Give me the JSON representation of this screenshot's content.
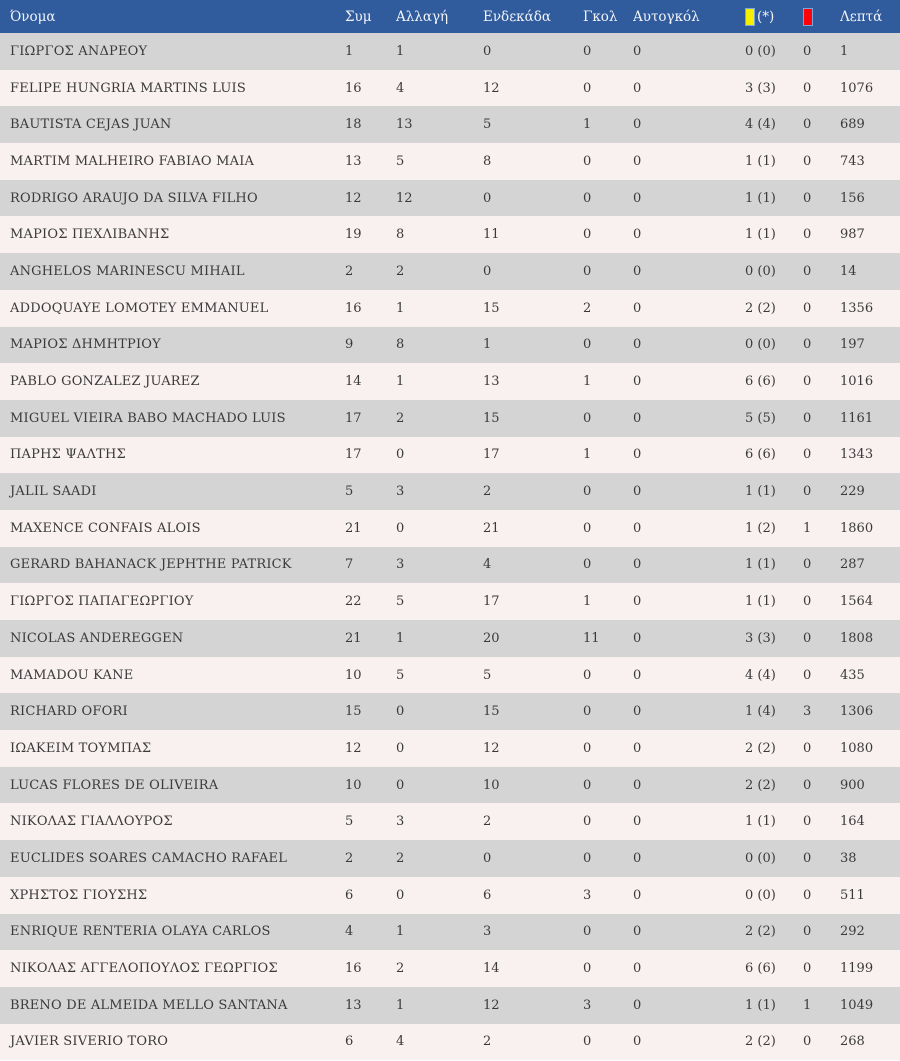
{
  "table": {
    "columns": [
      {
        "label": "Όνομα"
      },
      {
        "label": "Συμ"
      },
      {
        "label": "Αλλαγή"
      },
      {
        "label": "Ενδεκάδα"
      },
      {
        "label": "Γκολ"
      },
      {
        "label": "Αυτογκόλ"
      },
      {
        "label": "(*)",
        "icon": "yellow-card-icon"
      },
      {
        "label": "",
        "icon": "red-card-icon"
      },
      {
        "label": "Λεπτά"
      }
    ],
    "rows": [
      {
        "name": "ΓΙΩΡΓΟΣ ΑΝΔΡΕΟΥ",
        "appearances": "1",
        "substitutions": "1",
        "starting_eleven": "0",
        "goals": "0",
        "own_goals": "0",
        "yellow_cards": "0 (0)",
        "red_cards": "0",
        "minutes": "1"
      },
      {
        "name": "FELIPE HUNGRIA MARTINS LUIS",
        "appearances": "16",
        "substitutions": "4",
        "starting_eleven": "12",
        "goals": "0",
        "own_goals": "0",
        "yellow_cards": "3 (3)",
        "red_cards": "0",
        "minutes": "1076"
      },
      {
        "name": "BAUTISTA CEJAS JUAN",
        "appearances": "18",
        "substitutions": "13",
        "starting_eleven": "5",
        "goals": "1",
        "own_goals": "0",
        "yellow_cards": "4 (4)",
        "red_cards": "0",
        "minutes": "689"
      },
      {
        "name": "MARTIM MALHEIRO FABIAO MAIA",
        "appearances": "13",
        "substitutions": "5",
        "starting_eleven": "8",
        "goals": "0",
        "own_goals": "0",
        "yellow_cards": "1 (1)",
        "red_cards": "0",
        "minutes": "743"
      },
      {
        "name": "RODRIGO ARAUJO DA SILVA FILHO",
        "appearances": "12",
        "substitutions": "12",
        "starting_eleven": "0",
        "goals": "0",
        "own_goals": "0",
        "yellow_cards": "1 (1)",
        "red_cards": "0",
        "minutes": "156"
      },
      {
        "name": "ΜΑΡΙΟΣ ΠΕΧΛΙΒΑΝΗΣ",
        "appearances": "19",
        "substitutions": "8",
        "starting_eleven": "11",
        "goals": "0",
        "own_goals": "0",
        "yellow_cards": "1 (1)",
        "red_cards": "0",
        "minutes": "987"
      },
      {
        "name": "ANGHELOS MARINESCU MIHAIL",
        "appearances": "2",
        "substitutions": "2",
        "starting_eleven": "0",
        "goals": "0",
        "own_goals": "0",
        "yellow_cards": "0 (0)",
        "red_cards": "0",
        "minutes": "14"
      },
      {
        "name": "ADDOQUAYE LOMOTEY EMMANUEL",
        "appearances": "16",
        "substitutions": "1",
        "starting_eleven": "15",
        "goals": "2",
        "own_goals": "0",
        "yellow_cards": "2 (2)",
        "red_cards": "0",
        "minutes": "1356"
      },
      {
        "name": "ΜΑΡΙΟΣ ΔΗΜΗΤΡΙΟΥ",
        "appearances": "9",
        "substitutions": "8",
        "starting_eleven": "1",
        "goals": "0",
        "own_goals": "0",
        "yellow_cards": "0 (0)",
        "red_cards": "0",
        "minutes": "197"
      },
      {
        "name": "PABLO GONZALEZ JUAREZ",
        "appearances": "14",
        "substitutions": "1",
        "starting_eleven": "13",
        "goals": "1",
        "own_goals": "0",
        "yellow_cards": "6 (6)",
        "red_cards": "0",
        "minutes": "1016"
      },
      {
        "name": "MIGUEL VIEIRA BABO MACHADO LUIS",
        "appearances": "17",
        "substitutions": "2",
        "starting_eleven": "15",
        "goals": "0",
        "own_goals": "0",
        "yellow_cards": "5 (5)",
        "red_cards": "0",
        "minutes": "1161"
      },
      {
        "name": "ΠΑΡΗΣ ΨΑΛΤΗΣ",
        "appearances": "17",
        "substitutions": "0",
        "starting_eleven": "17",
        "goals": "1",
        "own_goals": "0",
        "yellow_cards": "6 (6)",
        "red_cards": "0",
        "minutes": "1343"
      },
      {
        "name": "JALIL SAADI",
        "appearances": "5",
        "substitutions": "3",
        "starting_eleven": "2",
        "goals": "0",
        "own_goals": "0",
        "yellow_cards": "1 (1)",
        "red_cards": "0",
        "minutes": "229"
      },
      {
        "name": "MAXENCE CONFAIS ALOIS",
        "appearances": "21",
        "substitutions": "0",
        "starting_eleven": "21",
        "goals": "0",
        "own_goals": "0",
        "yellow_cards": "1 (2)",
        "red_cards": "1",
        "minutes": "1860"
      },
      {
        "name": "GERARD BAHANACK JEPHTHE PATRICK",
        "appearances": "7",
        "substitutions": "3",
        "starting_eleven": "4",
        "goals": "0",
        "own_goals": "0",
        "yellow_cards": "1 (1)",
        "red_cards": "0",
        "minutes": "287"
      },
      {
        "name": "ΓΙΩΡΓΟΣ ΠΑΠΑΓΕΩΡΓΙΟΥ",
        "appearances": "22",
        "substitutions": "5",
        "starting_eleven": "17",
        "goals": "1",
        "own_goals": "0",
        "yellow_cards": "1 (1)",
        "red_cards": "0",
        "minutes": "1564"
      },
      {
        "name": "NICOLAS ANDEREGGEN",
        "appearances": "21",
        "substitutions": "1",
        "starting_eleven": "20",
        "goals": "11",
        "own_goals": "0",
        "yellow_cards": "3 (3)",
        "red_cards": "0",
        "minutes": "1808"
      },
      {
        "name": "MAMADOU KANE",
        "appearances": "10",
        "substitutions": "5",
        "starting_eleven": "5",
        "goals": "0",
        "own_goals": "0",
        "yellow_cards": "4 (4)",
        "red_cards": "0",
        "minutes": "435"
      },
      {
        "name": "RICHARD OFORI",
        "appearances": "15",
        "substitutions": "0",
        "starting_eleven": "15",
        "goals": "0",
        "own_goals": "0",
        "yellow_cards": "1 (4)",
        "red_cards": "3",
        "minutes": "1306"
      },
      {
        "name": "ΙΩΑΚΕΙΜ ΤΟΥΜΠΑΣ",
        "appearances": "12",
        "substitutions": "0",
        "starting_eleven": "12",
        "goals": "0",
        "own_goals": "0",
        "yellow_cards": "2 (2)",
        "red_cards": "0",
        "minutes": "1080"
      },
      {
        "name": "LUCAS FLORES DE OLIVEIRA",
        "appearances": "10",
        "substitutions": "0",
        "starting_eleven": "10",
        "goals": "0",
        "own_goals": "0",
        "yellow_cards": "2 (2)",
        "red_cards": "0",
        "minutes": "900"
      },
      {
        "name": "ΝΙΚΟΛΑΣ ΓΙΑΛΛΟΥΡΟΣ",
        "appearances": "5",
        "substitutions": "3",
        "starting_eleven": "2",
        "goals": "0",
        "own_goals": "0",
        "yellow_cards": "1 (1)",
        "red_cards": "0",
        "minutes": "164"
      },
      {
        "name": "EUCLIDES SOARES CAMACHO RAFAEL",
        "appearances": "2",
        "substitutions": "2",
        "starting_eleven": "0",
        "goals": "0",
        "own_goals": "0",
        "yellow_cards": "0 (0)",
        "red_cards": "0",
        "minutes": "38"
      },
      {
        "name": "ΧΡΗΣΤΟΣ ΓΙΟΥΣΗΣ",
        "appearances": "6",
        "substitutions": "0",
        "starting_eleven": "6",
        "goals": "3",
        "own_goals": "0",
        "yellow_cards": "0 (0)",
        "red_cards": "0",
        "minutes": "511"
      },
      {
        "name": "ENRIQUE RENTERIA OLAYA CARLOS",
        "appearances": "4",
        "substitutions": "1",
        "starting_eleven": "3",
        "goals": "0",
        "own_goals": "0",
        "yellow_cards": "2 (2)",
        "red_cards": "0",
        "minutes": "292"
      },
      {
        "name": "ΝΙΚΟΛΑΣ ΑΓΓΕΛΟΠΟΥΛΟΣ ΓΕΩΡΓΙΟΣ",
        "appearances": "16",
        "substitutions": "2",
        "starting_eleven": "14",
        "goals": "0",
        "own_goals": "0",
        "yellow_cards": "6 (6)",
        "red_cards": "0",
        "minutes": "1199"
      },
      {
        "name": "BRENO DE ALMEIDA MELLO SANTANA",
        "appearances": "13",
        "substitutions": "1",
        "starting_eleven": "12",
        "goals": "3",
        "own_goals": "0",
        "yellow_cards": "1 (1)",
        "red_cards": "1",
        "minutes": "1049"
      },
      {
        "name": "JAVIER SIVERIO TORO",
        "appearances": "6",
        "substitutions": "4",
        "starting_eleven": "2",
        "goals": "0",
        "own_goals": "0",
        "yellow_cards": "2 (2)",
        "red_cards": "0",
        "minutes": "268"
      }
    ]
  },
  "colors": {
    "header_bg": "#305b9c",
    "header_text": "#f2f4f8",
    "row_odd_bg": "#d4d4d4",
    "row_even_bg": "#f9f0f0",
    "row_text": "#3a3a3a",
    "yellow_card": "#f7ef00",
    "red_card": "#fb0309",
    "card_border": "#7aa6db"
  }
}
